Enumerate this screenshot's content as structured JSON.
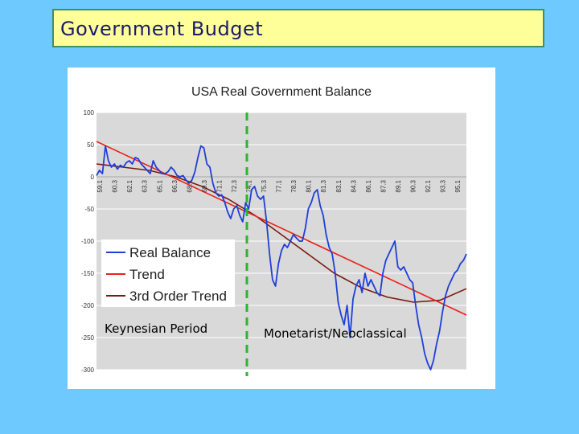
{
  "slide": {
    "title": "Government Budget"
  },
  "colors": {
    "background": "#6dc9ff",
    "title_box": "#ffff99",
    "real_balance": "#1f3fd9",
    "trend": "#e8231a",
    "third_order_trend": "#7a1a10",
    "divider": "#2db52d"
  },
  "annotations": {
    "left_period": "Keynesian Period",
    "right_period": "Monetarist/Neoclassical"
  },
  "chart_data": {
    "type": "line",
    "title": "USA Real Government Balance",
    "xlabel": "",
    "ylabel": "",
    "ylim": [
      -300,
      100
    ],
    "yticks": [
      100,
      50,
      0,
      -50,
      -100,
      -150,
      -200,
      -250,
      -300
    ],
    "xticks": [
      "59.1",
      "60.3",
      "62.1",
      "63.3",
      "65.1",
      "66.3",
      "68.1",
      "69.3",
      "71.1",
      "72.3",
      "74.1",
      "75.3",
      "77.1",
      "78.3",
      "80.1",
      "81.3",
      "83.1",
      "84.3",
      "86.1",
      "87.3",
      "89.1",
      "90.3",
      "92.1",
      "93.3",
      "95.1"
    ],
    "grid": true,
    "legend": {
      "position": "bottom-left",
      "entries": [
        "Real Balance",
        "Trend",
        "3rd Order Trend"
      ]
    },
    "series": [
      {
        "name": "Real Balance",
        "values": [
          2,
          10,
          5,
          48,
          25,
          15,
          20,
          12,
          18,
          15,
          22,
          25,
          20,
          30,
          28,
          20,
          15,
          10,
          5,
          25,
          15,
          10,
          5,
          5,
          8,
          15,
          10,
          2,
          0,
          2,
          -5,
          -10,
          -5,
          8,
          30,
          48,
          45,
          20,
          15,
          -10,
          -25,
          -30,
          -28,
          -40,
          -55,
          -65,
          -50,
          -45,
          -60,
          -70,
          -40,
          -50,
          -20,
          -15,
          -30,
          -35,
          -30,
          -70,
          -120,
          -160,
          -170,
          -135,
          -115,
          -105,
          -110,
          -100,
          -90,
          -95,
          -100,
          -100,
          -80,
          -50,
          -40,
          -25,
          -20,
          -45,
          -60,
          -90,
          -110,
          -120,
          -150,
          -195,
          -215,
          -230,
          -200,
          -250,
          -190,
          -170,
          -160,
          -180,
          -150,
          -170,
          -160,
          -170,
          -180,
          -185,
          -150,
          -130,
          -120,
          -110,
          -100,
          -140,
          -145,
          -140,
          -150,
          -160,
          -165,
          -200,
          -230,
          -250,
          -275,
          -290,
          -300,
          -285,
          -260,
          -240,
          -210,
          -185,
          -170,
          -160,
          -150,
          -145,
          -135,
          -130,
          -120
        ]
      },
      {
        "name": "Trend",
        "values": [
          55,
          -215
        ]
      },
      {
        "name": "3rd Order Trend",
        "values": [
          20,
          15,
          10,
          0,
          -15,
          -35,
          -60,
          -90,
          -120,
          -150,
          -172,
          -187,
          -195,
          -192,
          -174
        ]
      }
    ]
  }
}
